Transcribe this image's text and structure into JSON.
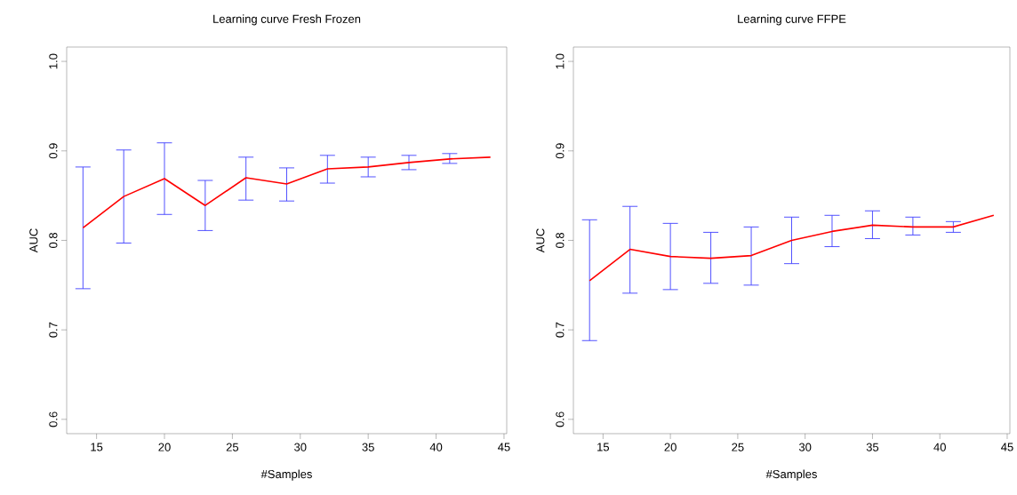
{
  "chart_data": [
    {
      "type": "line",
      "title": "Learning curve Fresh Frozen",
      "xlabel": "#Samples",
      "ylabel": "AUC",
      "color": "#ff0000",
      "x": [
        14,
        17,
        20,
        23,
        26,
        29,
        32,
        35,
        38,
        41,
        44
      ],
      "values": [
        0.814,
        0.849,
        0.869,
        0.839,
        0.87,
        0.863,
        0.88,
        0.882,
        0.887,
        0.891,
        0.893
      ],
      "errors": [
        [
          0.746,
          0.882
        ],
        [
          0.797,
          0.901
        ],
        [
          0.829,
          0.909
        ],
        [
          0.811,
          0.867
        ],
        [
          0.845,
          0.893
        ],
        [
          0.844,
          0.881
        ],
        [
          0.864,
          0.895
        ],
        [
          0.871,
          0.893
        ],
        [
          0.879,
          0.895
        ],
        [
          0.886,
          0.897
        ],
        null
      ],
      "xlim": [
        12.8,
        45.2
      ],
      "ylim": [
        0.584,
        1.016
      ],
      "xticks": [
        15,
        20,
        25,
        30,
        35,
        40,
        45
      ],
      "yticks": [
        0.6,
        0.7,
        0.8,
        0.9,
        {
          "value": 1,
          "label": "1.0"
        }
      ]
    },
    {
      "type": "line",
      "title": "Learning curve FFPE",
      "xlabel": "#Samples",
      "ylabel": "AUC",
      "color": "#ff0000",
      "x": [
        14,
        17,
        20,
        23,
        26,
        29,
        32,
        35,
        38,
        41,
        44
      ],
      "values": [
        0.755,
        0.79,
        0.782,
        0.78,
        0.783,
        0.8,
        0.81,
        0.817,
        0.815,
        0.815,
        0.828
      ],
      "errors": [
        [
          0.688,
          0.823
        ],
        [
          0.741,
          0.838
        ],
        [
          0.745,
          0.819
        ],
        [
          0.752,
          0.809
        ],
        [
          0.75,
          0.815
        ],
        [
          0.774,
          0.826
        ],
        [
          0.793,
          0.828
        ],
        [
          0.802,
          0.833
        ],
        [
          0.806,
          0.826
        ],
        [
          0.809,
          0.821
        ],
        null
      ],
      "xlim": [
        12.8,
        45.2
      ],
      "ylim": [
        0.584,
        1.016
      ],
      "xticks": [
        15,
        20,
        25,
        30,
        35,
        40,
        45
      ],
      "yticks": [
        0.6,
        0.7,
        0.8,
        0.9,
        {
          "value": 1,
          "label": "1.0"
        }
      ]
    }
  ]
}
